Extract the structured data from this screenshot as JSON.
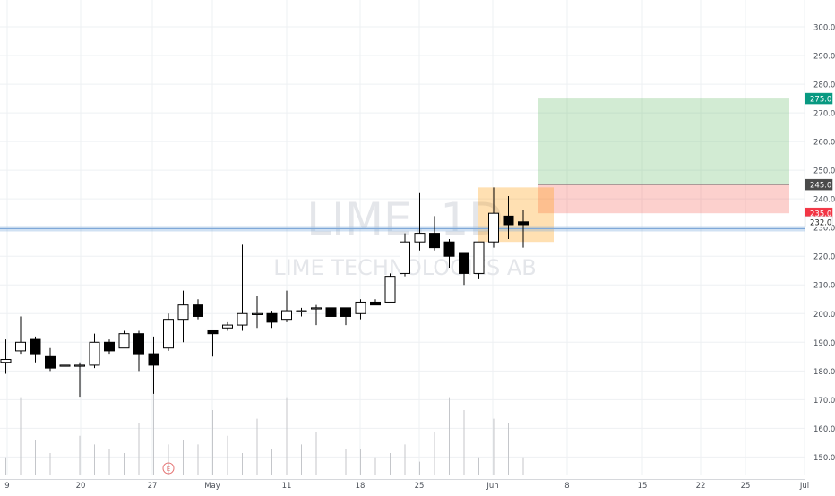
{
  "chart_data": {
    "type": "candlestick",
    "watermark_symbol": "LIME, 1D",
    "watermark_name": "LIME TECHNOLOGIES AB",
    "ylim": [
      147,
      305
    ],
    "y_ticks": [
      150,
      160,
      170,
      180,
      190,
      200,
      210,
      220,
      230,
      240,
      250,
      260,
      270,
      280,
      290,
      300
    ],
    "y_tick_labels": [
      "150.0",
      "160.0",
      "170.0",
      "180.0",
      "190.0",
      "200.0",
      "210.0",
      "220.0",
      "230.0",
      "240.0",
      "250.0",
      "260.0",
      "270.0",
      "280.0",
      "290.0",
      "300.0"
    ],
    "x_tick_labels": [
      "9",
      "20",
      "27",
      "May",
      "11",
      "18",
      "25",
      "Jun",
      "8",
      "15",
      "22",
      "25",
      "Jul"
    ],
    "price_badges": [
      {
        "label": "275.0",
        "value": 275,
        "color": "#089981"
      },
      {
        "label": "245.0",
        "value": 245,
        "color": "#4a4a4a"
      },
      {
        "label": "235.0",
        "value": 235,
        "color": "#f23645"
      },
      {
        "label": "232.0",
        "value": 232,
        "color": "#ffffff"
      }
    ],
    "horizontal_line": 229.6,
    "candles": [
      {
        "date": "Apr 9",
        "open": 183,
        "high": 191,
        "low": 179,
        "close": 184
      },
      {
        "date": "Apr 10",
        "open": 187,
        "high": 199,
        "low": 186,
        "close": 190
      },
      {
        "date": "Apr 13",
        "open": 191,
        "high": 192,
        "low": 183,
        "close": 186
      },
      {
        "date": "Apr 14",
        "open": 185,
        "high": 188,
        "low": 180,
        "close": 181
      },
      {
        "date": "Apr 15",
        "open": 182,
        "high": 185,
        "low": 180,
        "close": 182
      },
      {
        "date": "Apr 16",
        "open": 182,
        "high": 183,
        "low": 171,
        "close": 182
      },
      {
        "date": "Apr 17",
        "open": 182,
        "high": 193,
        "low": 181,
        "close": 190
      },
      {
        "date": "Apr 20",
        "open": 190,
        "high": 191,
        "low": 186,
        "close": 187
      },
      {
        "date": "Apr 21",
        "open": 188,
        "high": 194,
        "low": 188,
        "close": 193
      },
      {
        "date": "Apr 22",
        "open": 193,
        "high": 194,
        "low": 180,
        "close": 186
      },
      {
        "date": "Apr 23",
        "open": 186,
        "high": 192,
        "low": 172,
        "close": 182
      },
      {
        "date": "Apr 24",
        "open": 188,
        "high": 200,
        "low": 187,
        "close": 198
      },
      {
        "date": "Apr 27",
        "open": 198,
        "high": 208,
        "low": 190,
        "close": 203
      },
      {
        "date": "Apr 28",
        "open": 203,
        "high": 205,
        "low": 198,
        "close": 199
      },
      {
        "date": "Apr 29",
        "open": 194,
        "high": 194,
        "low": 185,
        "close": 193
      },
      {
        "date": "May 4",
        "open": 195,
        "high": 197,
        "low": 194,
        "close": 196
      },
      {
        "date": "May 5",
        "open": 196,
        "high": 224,
        "low": 194,
        "close": 200
      },
      {
        "date": "May 6",
        "open": 200,
        "high": 206,
        "low": 195,
        "close": 200
      },
      {
        "date": "May 7",
        "open": 200,
        "high": 201,
        "low": 195,
        "close": 197
      },
      {
        "date": "May 8",
        "open": 198,
        "high": 208,
        "low": 197,
        "close": 201
      },
      {
        "date": "May 11",
        "open": 201,
        "high": 202,
        "low": 199,
        "close": 201
      },
      {
        "date": "May 12",
        "open": 202,
        "high": 203,
        "low": 196,
        "close": 202
      },
      {
        "date": "May 13",
        "open": 202,
        "high": 202,
        "low": 187,
        "close": 199
      },
      {
        "date": "May 14",
        "open": 202,
        "high": 202,
        "low": 196,
        "close": 199
      },
      {
        "date": "May 15",
        "open": 200,
        "high": 205,
        "low": 198,
        "close": 204
      },
      {
        "date": "May 18",
        "open": 204,
        "high": 205,
        "low": 203,
        "close": 203
      },
      {
        "date": "May 19",
        "open": 204,
        "high": 214,
        "low": 204,
        "close": 213
      },
      {
        "date": "May 20",
        "open": 214,
        "high": 228,
        "low": 213,
        "close": 225
      },
      {
        "date": "May 21",
        "open": 225,
        "high": 242,
        "low": 222,
        "close": 228
      },
      {
        "date": "May 22",
        "open": 228,
        "high": 234,
        "low": 222,
        "close": 223
      },
      {
        "date": "May 25",
        "open": 225,
        "high": 226,
        "low": 216,
        "close": 220
      },
      {
        "date": "May 26",
        "open": 221,
        "high": 221,
        "low": 210,
        "close": 214
      },
      {
        "date": "May 27",
        "open": 214,
        "high": 225,
        "low": 212,
        "close": 225
      },
      {
        "date": "Jun 1",
        "open": 225,
        "high": 244,
        "low": 223,
        "close": 235
      },
      {
        "date": "Jun 2",
        "open": 234,
        "high": 241,
        "low": 226,
        "close": 231
      },
      {
        "date": "Jun 3",
        "open": 232,
        "high": 236,
        "low": 223,
        "close": 231
      }
    ],
    "volume": [
      4,
      18,
      8,
      5,
      6,
      9,
      7,
      6,
      5,
      12,
      20,
      7,
      8,
      7,
      15,
      9,
      5,
      13,
      6,
      18,
      7,
      10,
      4,
      6,
      6,
      4,
      5,
      7,
      3,
      10,
      18,
      15,
      4,
      13,
      12,
      4
    ],
    "position_tool": {
      "entry": 245,
      "target": 275,
      "stop": 235,
      "pending_zone": [
        225,
        244
      ]
    },
    "event_marker": "E"
  }
}
